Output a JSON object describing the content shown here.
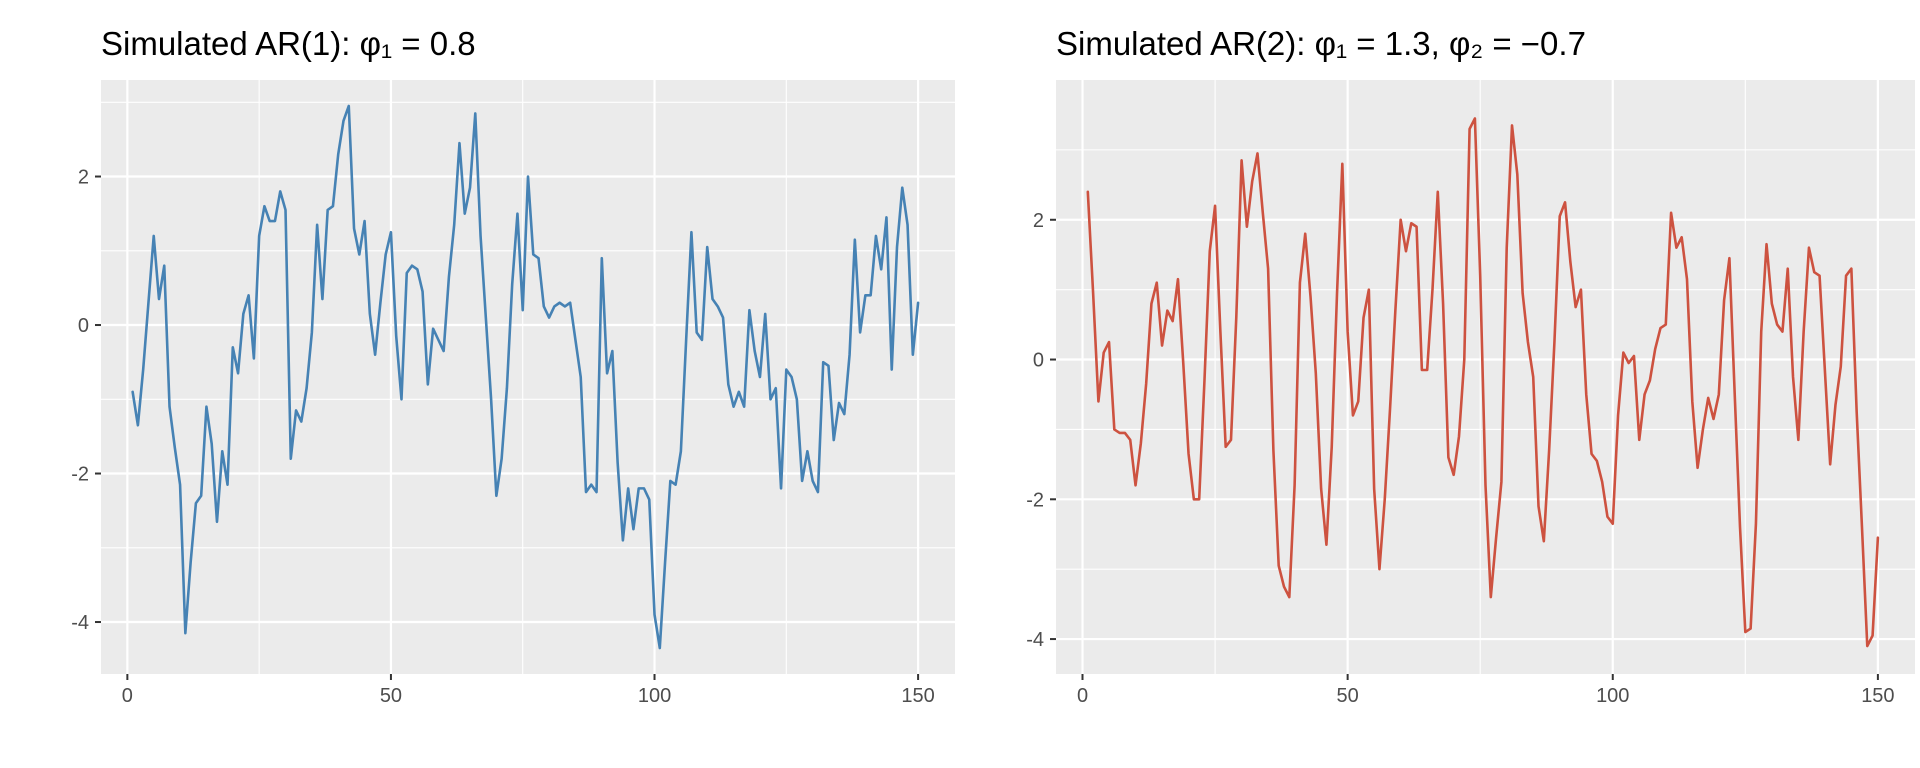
{
  "chart_data": [
    {
      "type": "line",
      "title": "Simulated AR(1): φ₁ = 0.8",
      "xlabel": "",
      "ylabel": "",
      "xlim": [
        -5,
        157
      ],
      "ylim": [
        -4.7,
        3.3
      ],
      "xticks": [
        0,
        50,
        100,
        150
      ],
      "yticks": [
        -4,
        -2,
        0,
        2
      ],
      "xtick_labels": [
        "0",
        "50",
        "100",
        "150"
      ],
      "ytick_labels": [
        "-4",
        "-2",
        "0",
        "2"
      ],
      "grid": true,
      "legend": "none",
      "line_color": "#4682b4",
      "series": [
        {
          "x": [
            1,
            2,
            3,
            4,
            5,
            6,
            7,
            8,
            9,
            10,
            11,
            12,
            13,
            14,
            15,
            16,
            17,
            18,
            19,
            20,
            21,
            22,
            23,
            24,
            25,
            26,
            27,
            28,
            29,
            30,
            31,
            32,
            33,
            34,
            35,
            36,
            37,
            38,
            39,
            40,
            41,
            42,
            43,
            44,
            45,
            46,
            47,
            48,
            49,
            50,
            51,
            52,
            53,
            54,
            55,
            56,
            57,
            58,
            59,
            60,
            61,
            62,
            63,
            64,
            65,
            66,
            67,
            68,
            69,
            70,
            71,
            72,
            73,
            74,
            75,
            76,
            77,
            78,
            79,
            80,
            81,
            82,
            83,
            84,
            85,
            86,
            87,
            88,
            89,
            90,
            91,
            92,
            93,
            94,
            95,
            96,
            97,
            98,
            99,
            100,
            101,
            102,
            103,
            104,
            105,
            106,
            107,
            108,
            109,
            110,
            111,
            112,
            113,
            114,
            115,
            116,
            117,
            118,
            119,
            120,
            121,
            122,
            123,
            124,
            125,
            126,
            127,
            128,
            129,
            130,
            131,
            132,
            133,
            134,
            135,
            136,
            137,
            138,
            139,
            140,
            141,
            142,
            143,
            144,
            145,
            146,
            147,
            148,
            149,
            150
          ],
          "values": [
            -0.9,
            -1.35,
            -0.6,
            0.3,
            1.2,
            0.35,
            0.8,
            -1.1,
            -1.65,
            -2.15,
            -4.15,
            -3.2,
            -2.4,
            -2.3,
            -1.1,
            -1.6,
            -2.65,
            -1.7,
            -2.15,
            -0.3,
            -0.65,
            0.15,
            0.4,
            -0.45,
            1.2,
            1.6,
            1.4,
            1.4,
            1.8,
            1.55,
            -1.8,
            -1.15,
            -1.3,
            -0.85,
            -0.1,
            1.35,
            0.35,
            1.55,
            1.6,
            2.3,
            2.75,
            2.95,
            1.3,
            0.95,
            1.4,
            0.15,
            -0.4,
            0.3,
            0.95,
            1.25,
            -0.15,
            -1.0,
            0.7,
            0.8,
            0.75,
            0.45,
            -0.8,
            -0.05,
            -0.2,
            -0.35,
            0.65,
            1.35,
            2.45,
            1.5,
            1.85,
            2.85,
            1.2,
            0.1,
            -1.0,
            -2.3,
            -1.8,
            -0.85,
            0.55,
            1.5,
            0.2,
            2.0,
            0.95,
            0.9,
            0.25,
            0.1,
            0.25,
            0.3,
            0.25,
            0.3,
            -0.2,
            -0.7,
            -2.25,
            -2.15,
            -2.25,
            0.9,
            -0.65,
            -0.35,
            -1.85,
            -2.9,
            -2.2,
            -2.75,
            -2.2,
            -2.2,
            -2.35,
            -3.9,
            -4.35,
            -3.2,
            -2.1,
            -2.15,
            -1.7,
            -0.2,
            1.25,
            -0.1,
            -0.2,
            1.05,
            0.35,
            0.25,
            0.1,
            -0.8,
            -1.1,
            -0.9,
            -1.1,
            0.2,
            -0.35,
            -0.7,
            0.15,
            -1.0,
            -0.85,
            -2.2,
            -0.6,
            -0.7,
            -1.0,
            -2.1,
            -1.7,
            -2.1,
            -2.25,
            -0.5,
            -0.55,
            -1.55,
            -1.05,
            -1.2,
            -0.4,
            1.15,
            -0.1,
            0.4,
            0.4,
            1.2,
            0.75,
            1.45,
            -0.6,
            1.05,
            1.85,
            1.35,
            -0.4,
            0.3
          ]
        }
      ]
    },
    {
      "type": "line",
      "title": "Simulated AR(2): φ₁ = 1.3, φ₂ = −0.7",
      "xlabel": "",
      "ylabel": "",
      "xlim": [
        -5,
        157
      ],
      "ylim": [
        -4.5,
        4.0
      ],
      "xticks": [
        0,
        50,
        100,
        150
      ],
      "yticks": [
        -4,
        -2,
        0,
        2
      ],
      "xtick_labels": [
        "0",
        "50",
        "100",
        "150"
      ],
      "ytick_labels": [
        "-4",
        "-2",
        "0",
        "2"
      ],
      "grid": true,
      "legend": "none",
      "line_color": "#cd5240",
      "series": [
        {
          "x": [
            1,
            2,
            3,
            4,
            5,
            6,
            7,
            8,
            9,
            10,
            11,
            12,
            13,
            14,
            15,
            16,
            17,
            18,
            19,
            20,
            21,
            22,
            23,
            24,
            25,
            26,
            27,
            28,
            29,
            30,
            31,
            32,
            33,
            34,
            35,
            36,
            37,
            38,
            39,
            40,
            41,
            42,
            43,
            44,
            45,
            46,
            47,
            48,
            49,
            50,
            51,
            52,
            53,
            54,
            55,
            56,
            57,
            58,
            59,
            60,
            61,
            62,
            63,
            64,
            65,
            66,
            67,
            68,
            69,
            70,
            71,
            72,
            73,
            74,
            75,
            76,
            77,
            78,
            79,
            80,
            81,
            82,
            83,
            84,
            85,
            86,
            87,
            88,
            89,
            90,
            91,
            92,
            93,
            94,
            95,
            96,
            97,
            98,
            99,
            100,
            101,
            102,
            103,
            104,
            105,
            106,
            107,
            108,
            109,
            110,
            111,
            112,
            113,
            114,
            115,
            116,
            117,
            118,
            119,
            120,
            121,
            122,
            123,
            124,
            125,
            126,
            127,
            128,
            129,
            130,
            131,
            132,
            133,
            134,
            135,
            136,
            137,
            138,
            139,
            140,
            141,
            142,
            143,
            144,
            145,
            146,
            147,
            148,
            149,
            150
          ],
          "values": [
            2.4,
            0.95,
            -0.6,
            0.1,
            0.25,
            -1.0,
            -1.05,
            -1.05,
            -1.15,
            -1.8,
            -1.2,
            -0.35,
            0.8,
            1.1,
            0.2,
            0.7,
            0.55,
            1.15,
            -0.05,
            -1.35,
            -2.0,
            -2.0,
            -0.3,
            1.55,
            2.2,
            0.4,
            -1.25,
            -1.15,
            0.6,
            2.85,
            1.9,
            2.55,
            2.95,
            2.1,
            1.3,
            -1.3,
            -2.95,
            -3.25,
            -3.4,
            -1.8,
            1.1,
            1.8,
            0.9,
            -0.2,
            -1.85,
            -2.65,
            -1.25,
            0.95,
            2.8,
            0.4,
            -0.8,
            -0.6,
            0.6,
            1.0,
            -1.85,
            -3.0,
            -2.0,
            -0.7,
            0.7,
            2.0,
            1.55,
            1.95,
            1.9,
            -0.15,
            -0.15,
            1.0,
            2.4,
            0.8,
            -1.4,
            -1.65,
            -1.1,
            0.0,
            3.3,
            3.45,
            1.2,
            -1.8,
            -3.4,
            -2.55,
            -1.75,
            1.6,
            3.35,
            2.65,
            0.95,
            0.25,
            -0.25,
            -2.1,
            -2.6,
            -1.3,
            0.25,
            2.05,
            2.25,
            1.4,
            0.75,
            1.0,
            -0.5,
            -1.35,
            -1.45,
            -1.75,
            -2.25,
            -2.35,
            -0.8,
            0.1,
            -0.05,
            0.05,
            -1.15,
            -0.5,
            -0.3,
            0.15,
            0.45,
            0.5,
            2.1,
            1.6,
            1.75,
            1.15,
            -0.6,
            -1.55,
            -1.0,
            -0.55,
            -0.85,
            -0.5,
            0.85,
            1.45,
            -0.5,
            -2.4,
            -3.9,
            -3.85,
            -2.35,
            0.4,
            1.65,
            0.8,
            0.5,
            0.4,
            1.3,
            -0.25,
            -1.15,
            0.4,
            1.6,
            1.25,
            1.2,
            -0.15,
            -1.5,
            -0.65,
            -0.1,
            1.2,
            1.3,
            -0.75,
            -2.4,
            -4.1,
            -3.95,
            -2.55
          ]
        }
      ]
    }
  ]
}
